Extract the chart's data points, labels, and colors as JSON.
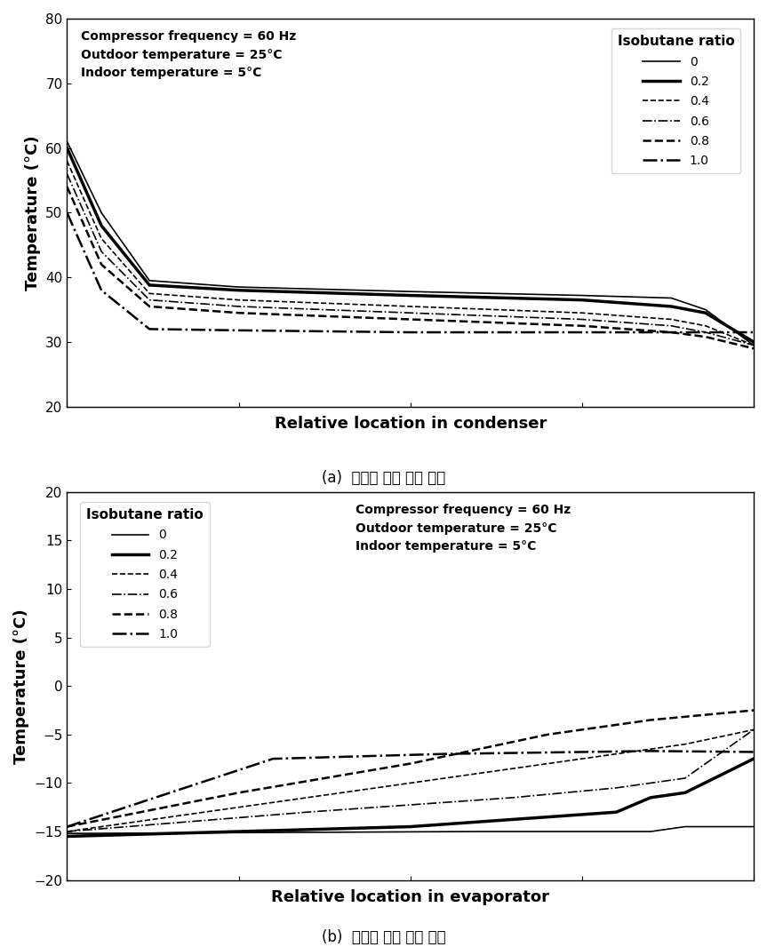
{
  "condenser": {
    "title_a": "(a)  응축기 내부 온도 분포",
    "xlabel": "Relative location in condenser",
    "ylabel": "Temperature (°C)",
    "ylim": [
      20,
      80
    ],
    "yticks": [
      20,
      30,
      40,
      50,
      60,
      70,
      80
    ],
    "xlim": [
      0,
      1
    ],
    "annotation_text": "Compressor frequency = 60 Hz\nOutdoor temperature = 25°C\nIndoor temperature = 5°C",
    "legend_title": "Isobutane ratio",
    "curves": [
      {
        "label": "0",
        "linestyle": "solid",
        "linewidth": 1.2,
        "x": [
          0,
          0.05,
          0.12,
          0.25,
          0.5,
          0.75,
          0.88,
          0.93,
          1.0
        ],
        "y": [
          61,
          50,
          39.5,
          38.5,
          37.8,
          37.2,
          36.8,
          35.0,
          29.5
        ]
      },
      {
        "label": "0.2",
        "linestyle": "solid",
        "linewidth": 2.5,
        "x": [
          0,
          0.05,
          0.12,
          0.25,
          0.5,
          0.75,
          0.88,
          0.93,
          1.0
        ],
        "y": [
          60,
          48,
          38.8,
          38.0,
          37.2,
          36.5,
          35.5,
          34.5,
          30.0
        ]
      },
      {
        "label": "0.4",
        "linestyle": "dashed",
        "linewidth": 1.2,
        "x": [
          0,
          0.05,
          0.12,
          0.25,
          0.5,
          0.75,
          0.88,
          0.93,
          1.0
        ],
        "y": [
          58,
          46,
          37.5,
          36.5,
          35.5,
          34.5,
          33.5,
          32.5,
          29.5
        ]
      },
      {
        "label": "0.6",
        "linestyle": "dashdot",
        "linewidth": 1.2,
        "x": [
          0,
          0.05,
          0.12,
          0.25,
          0.5,
          0.75,
          0.88,
          0.93,
          1.0
        ],
        "y": [
          56,
          44,
          36.5,
          35.5,
          34.5,
          33.5,
          32.5,
          31.5,
          29.5
        ]
      },
      {
        "label": "0.8",
        "linestyle": "dashed",
        "linewidth": 1.8,
        "x": [
          0,
          0.05,
          0.12,
          0.25,
          0.5,
          0.75,
          0.88,
          0.93,
          1.0
        ],
        "y": [
          54,
          42,
          35.5,
          34.5,
          33.5,
          32.5,
          31.5,
          30.8,
          29.0
        ]
      },
      {
        "label": "1.0",
        "linestyle": "dashdot",
        "linewidth": 1.8,
        "x": [
          0,
          0.05,
          0.12,
          0.25,
          0.5,
          0.75,
          0.88,
          0.93,
          1.0
        ],
        "y": [
          50,
          38,
          32.0,
          31.8,
          31.5,
          31.5,
          31.5,
          31.5,
          31.5
        ]
      }
    ]
  },
  "evaporator": {
    "title_b": "(b)  증발기 내부 온도 분포",
    "xlabel": "Relative location in evaporator",
    "ylabel": "Temperature (°C)",
    "ylim": [
      -20,
      20
    ],
    "yticks": [
      -20,
      -15,
      -10,
      -5,
      0,
      5,
      10,
      15,
      20
    ],
    "xlim": [
      0,
      1
    ],
    "annotation_text": "Compressor frequency = 60 Hz\nOutdoor temperature = 25°C\nIndoor temperature = 5°C",
    "legend_title": "Isobutane ratio",
    "curves": [
      {
        "label": "0",
        "linestyle": "solid",
        "linewidth": 1.2,
        "x": [
          0,
          0.6,
          0.85,
          0.9,
          1.0
        ],
        "y": [
          -15.2,
          -15.0,
          -15.0,
          -14.5,
          -14.5
        ]
      },
      {
        "label": "0.2",
        "linestyle": "solid",
        "linewidth": 2.5,
        "x": [
          0,
          0.5,
          0.8,
          0.85,
          0.9,
          1.0
        ],
        "y": [
          -15.5,
          -14.5,
          -13.0,
          -11.5,
          -11.0,
          -7.5
        ]
      },
      {
        "label": "0.4",
        "linestyle": "dashed",
        "linewidth": 1.2,
        "x": [
          0,
          0.35,
          0.65,
          0.8,
          0.9,
          1.0
        ],
        "y": [
          -15.0,
          -11.5,
          -8.5,
          -7.0,
          -6.0,
          -4.5
        ]
      },
      {
        "label": "0.6",
        "linestyle": "dashdot",
        "linewidth": 1.2,
        "x": [
          0,
          0.35,
          0.65,
          0.8,
          0.9,
          1.0
        ],
        "y": [
          -15.0,
          -13.0,
          -11.5,
          -10.5,
          -9.5,
          -4.5
        ]
      },
      {
        "label": "0.8",
        "linestyle": "dashed",
        "linewidth": 1.8,
        "x": [
          0,
          0.25,
          0.5,
          0.7,
          0.85,
          1.0
        ],
        "y": [
          -14.5,
          -11.0,
          -8.0,
          -5.0,
          -3.5,
          -2.5
        ]
      },
      {
        "label": "1.0",
        "linestyle": "dashdot",
        "linewidth": 1.8,
        "x": [
          0,
          0.3,
          0.55,
          0.75,
          0.85,
          1.0
        ],
        "y": [
          -14.5,
          -7.5,
          -7.0,
          -6.8,
          -6.7,
          -6.8
        ]
      }
    ]
  }
}
